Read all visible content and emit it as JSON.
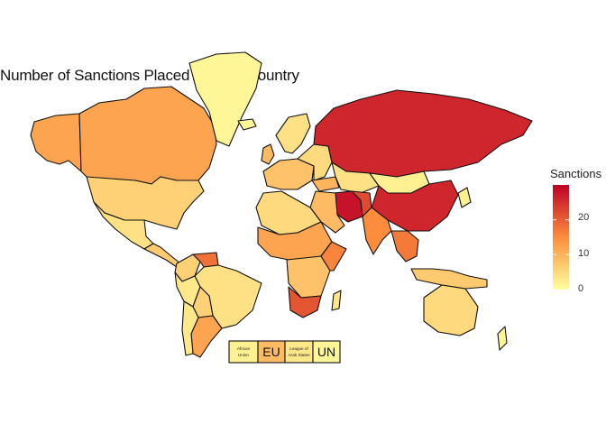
{
  "title": "Number of Sanctions Placed Against Country",
  "legend": {
    "title": "Sanctions",
    "ticks": [
      "20",
      "10",
      "0"
    ],
    "tick_values": [
      20,
      10,
      0
    ],
    "range": [
      0,
      30
    ],
    "colors": {
      "low": "#ffff9e",
      "mid": "#fd8d3c",
      "high": "#bd0026"
    }
  },
  "org_boxes": [
    {
      "label": "African Union",
      "line1": "African",
      "line2": "Union",
      "value": 2
    },
    {
      "label": "EU",
      "value": 9
    },
    {
      "label": "League of Arab States",
      "line1": "League of",
      "line2": "Arab States",
      "value": 3
    },
    {
      "label": "UN",
      "value": 1
    }
  ],
  "chart_data": {
    "type": "choropleth",
    "title": "Number of Sanctions Placed Against Country",
    "legend_title": "Sanctions",
    "scale": {
      "min": 0,
      "max": 30,
      "ticks": [
        0,
        10,
        20
      ]
    },
    "regions": [
      {
        "name": "Russia",
        "value": 26
      },
      {
        "name": "China",
        "value": 26
      },
      {
        "name": "Iran",
        "value": 28
      },
      {
        "name": "Canada",
        "value": 12
      },
      {
        "name": "United States",
        "value": 6
      },
      {
        "name": "Alaska",
        "value": 12
      },
      {
        "name": "Greenland",
        "value": 1
      },
      {
        "name": "Mexico",
        "value": 4
      },
      {
        "name": "Brazil",
        "value": 4
      },
      {
        "name": "Argentina",
        "value": 12
      },
      {
        "name": "South Africa",
        "value": 21
      },
      {
        "name": "India",
        "value": 15
      },
      {
        "name": "Australia",
        "value": 5
      },
      {
        "name": "Mongolia",
        "value": 2
      },
      {
        "name": "Southeast Asia",
        "value": 17
      }
    ]
  }
}
